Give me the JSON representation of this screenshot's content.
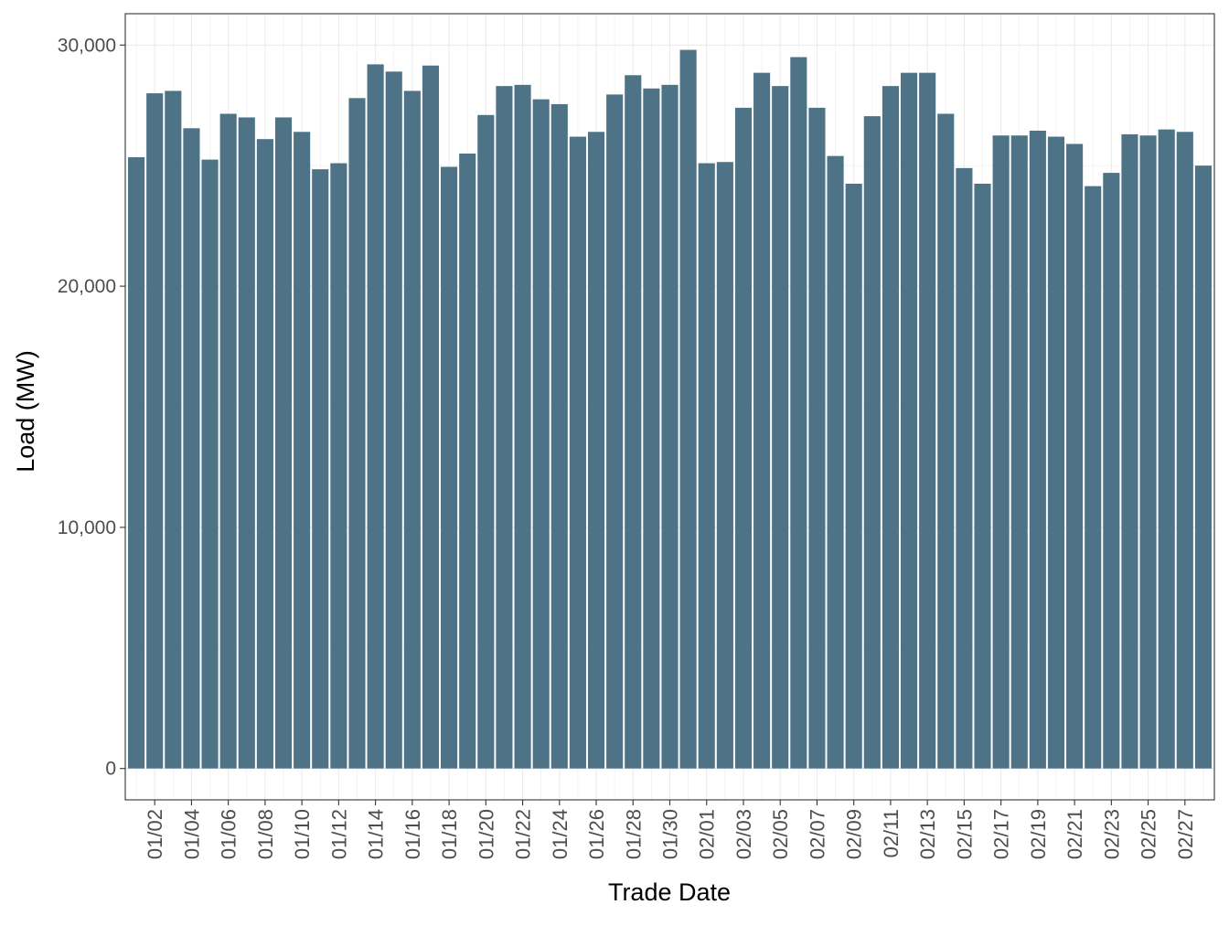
{
  "chart_data": {
    "type": "bar",
    "xlabel": "Trade Date",
    "ylabel": "Load (MW)",
    "ylim": [
      -1300,
      31300
    ],
    "yticks": [
      0,
      10000,
      20000,
      30000
    ],
    "ytick_labels": [
      "0",
      "10,000",
      "20,000",
      "30,000"
    ],
    "grid": true,
    "bar_color": "#4e7286",
    "categories": [
      "01/01",
      "01/02",
      "01/03",
      "01/04",
      "01/05",
      "01/06",
      "01/07",
      "01/08",
      "01/09",
      "01/10",
      "01/11",
      "01/12",
      "01/13",
      "01/14",
      "01/15",
      "01/16",
      "01/17",
      "01/18",
      "01/19",
      "01/20",
      "01/21",
      "01/22",
      "01/23",
      "01/24",
      "01/25",
      "01/26",
      "01/27",
      "01/28",
      "01/29",
      "01/30",
      "01/31",
      "02/01",
      "02/02",
      "02/03",
      "02/04",
      "02/05",
      "02/06",
      "02/07",
      "02/08",
      "02/09",
      "02/10",
      "02/11",
      "02/12",
      "02/13",
      "02/14",
      "02/15",
      "02/16",
      "02/17",
      "02/18",
      "02/19",
      "02/20",
      "02/21",
      "02/22",
      "02/23",
      "02/24",
      "02/25",
      "02/26",
      "02/27",
      "02/28"
    ],
    "tick_labels": [
      "01/02",
      "01/04",
      "01/06",
      "01/08",
      "01/10",
      "01/12",
      "01/14",
      "01/16",
      "01/18",
      "01/20",
      "01/22",
      "01/24",
      "01/26",
      "01/28",
      "01/30",
      "02/01",
      "02/03",
      "02/05",
      "02/07",
      "02/09",
      "02/11",
      "02/13",
      "02/15",
      "02/17",
      "02/19",
      "02/21",
      "02/23",
      "02/25",
      "02/27"
    ],
    "values": [
      25350,
      28000,
      28100,
      26550,
      25250,
      27150,
      27000,
      26100,
      27000,
      26400,
      24850,
      25100,
      27800,
      29200,
      28900,
      28100,
      29150,
      24950,
      25500,
      27100,
      28300,
      28350,
      27750,
      27550,
      26200,
      26400,
      27950,
      28750,
      28200,
      28350,
      29800,
      25100,
      25150,
      27400,
      28850,
      28300,
      29500,
      27400,
      25400,
      24250,
      27050,
      28300,
      28850,
      28850,
      27150,
      24900,
      24250,
      26250,
      26250,
      26450,
      26200,
      25900,
      24150,
      24700,
      26300,
      26250,
      26500,
      26400,
      25000
    ]
  }
}
